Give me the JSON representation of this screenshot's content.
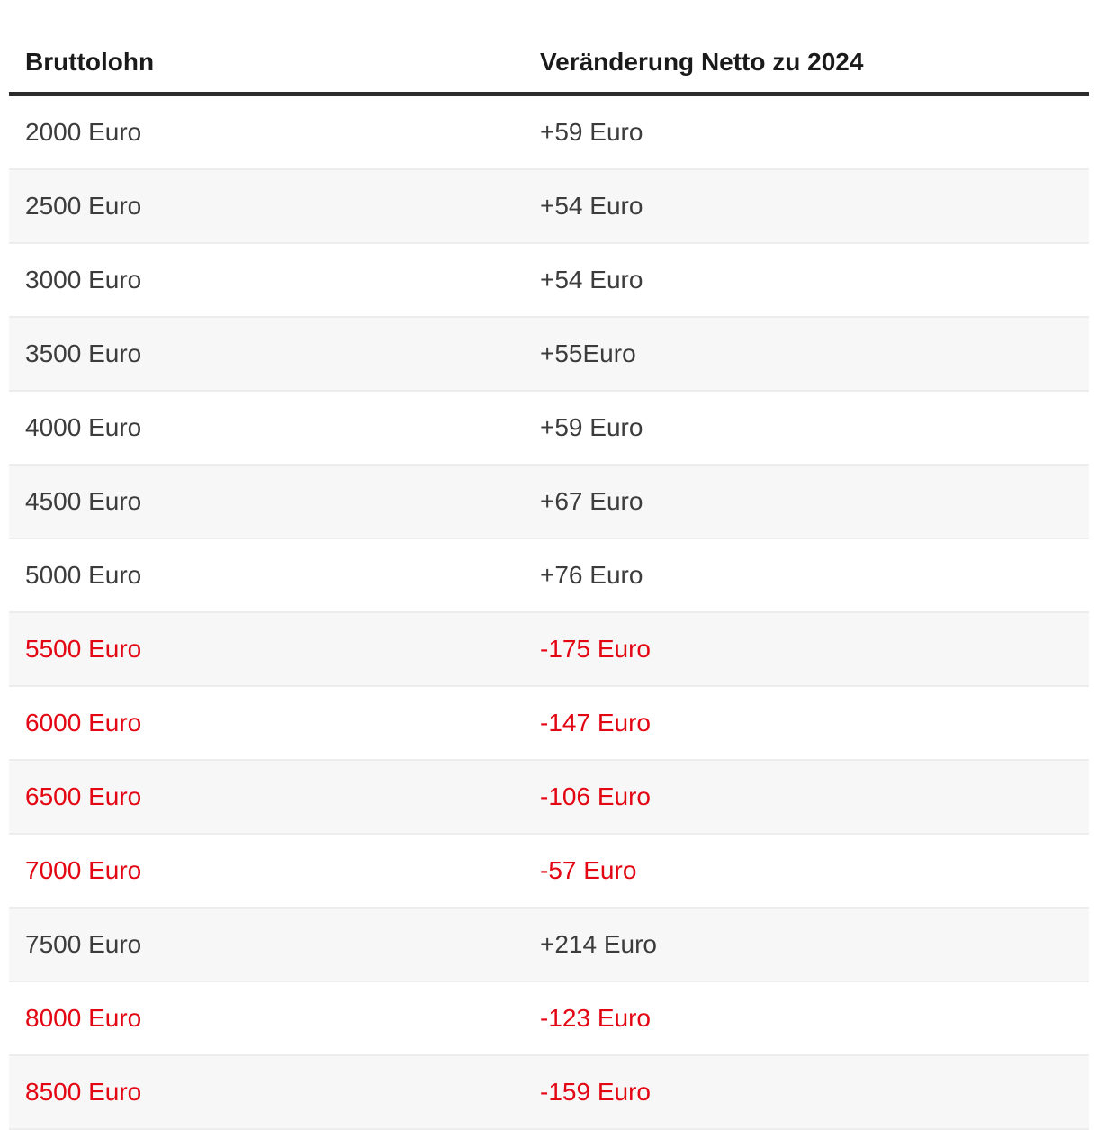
{
  "chart_data": {
    "type": "table",
    "columns": [
      "Bruttolohn",
      "Veränderung Netto zu 2024"
    ],
    "rows": [
      {
        "bruttolohn": "2000 Euro",
        "veraenderung": "+59 Euro"
      },
      {
        "bruttolohn": "2500 Euro",
        "veraenderung": "+54 Euro"
      },
      {
        "bruttolohn": "3000 Euro",
        "veraenderung": "+54 Euro"
      },
      {
        "bruttolohn": "3500 Euro",
        "veraenderung": "+55Euro"
      },
      {
        "bruttolohn": "4000 Euro",
        "veraenderung": "+59 Euro"
      },
      {
        "bruttolohn": "4500 Euro",
        "veraenderung": "+67 Euro"
      },
      {
        "bruttolohn": "5000 Euro",
        "veraenderung": "+76 Euro"
      },
      {
        "bruttolohn": "5500 Euro",
        "veraenderung": "-175 Euro"
      },
      {
        "bruttolohn": "6000 Euro",
        "veraenderung": "-147 Euro"
      },
      {
        "bruttolohn": "6500 Euro",
        "veraenderung": "-106 Euro"
      },
      {
        "bruttolohn": "7000 Euro",
        "veraenderung": "-57 Euro"
      },
      {
        "bruttolohn": "7500 Euro",
        "veraenderung": "+214 Euro"
      },
      {
        "bruttolohn": "8000 Euro",
        "veraenderung": "-123 Euro"
      },
      {
        "bruttolohn": "8500 Euro",
        "veraenderung": "-159 Euro"
      }
    ]
  },
  "colors": {
    "negative_text": "#e30613",
    "positive_text": "#3c3c3c",
    "header_text": "#1a1a1a",
    "header_rule": "#2b2b2b",
    "stripe_bg": "#f7f7f7"
  }
}
